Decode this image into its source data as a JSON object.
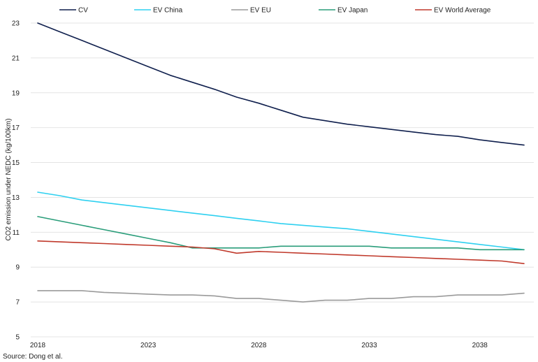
{
  "chart_data": {
    "type": "line",
    "title": "",
    "xlabel": "",
    "ylabel": "CO2 emission under NEDC (kg/100km)",
    "xlim": [
      2018,
      2040
    ],
    "ylim": [
      5,
      23
    ],
    "grid": true,
    "legend_position": "top",
    "x_ticks": [
      "2018",
      "2023",
      "2028",
      "2033",
      "2038"
    ],
    "y_ticks": [
      "5",
      "7",
      "9",
      "11",
      "13",
      "15",
      "17",
      "19",
      "21",
      "23"
    ],
    "x": [
      2018,
      2019,
      2020,
      2021,
      2022,
      2023,
      2024,
      2025,
      2026,
      2027,
      2028,
      2029,
      2030,
      2031,
      2032,
      2033,
      2034,
      2035,
      2036,
      2037,
      2038,
      2039,
      2040
    ],
    "series": [
      {
        "name": "CV",
        "color": "#0f1f4d",
        "values": [
          23.0,
          22.5,
          22.0,
          21.5,
          21.0,
          20.5,
          20.0,
          19.6,
          19.2,
          18.75,
          18.4,
          18.0,
          17.6,
          17.4,
          17.2,
          17.05,
          16.9,
          16.75,
          16.6,
          16.5,
          16.3,
          16.15,
          16.0
        ]
      },
      {
        "name": "EV China",
        "color": "#2ed0f0",
        "values": [
          13.3,
          13.1,
          12.85,
          12.7,
          12.55,
          12.4,
          12.25,
          12.1,
          11.95,
          11.8,
          11.65,
          11.5,
          11.4,
          11.3,
          11.2,
          11.05,
          10.9,
          10.75,
          10.6,
          10.45,
          10.3,
          10.15,
          10.0
        ]
      },
      {
        "name": "EV EU",
        "color": "#9a9a9a",
        "values": [
          7.65,
          7.65,
          7.65,
          7.55,
          7.5,
          7.45,
          7.4,
          7.4,
          7.35,
          7.2,
          7.2,
          7.1,
          7.0,
          7.1,
          7.1,
          7.2,
          7.2,
          7.3,
          7.3,
          7.4,
          7.4,
          7.4,
          7.5
        ]
      },
      {
        "name": "EV Japan",
        "color": "#2a9d7a",
        "values": [
          11.9,
          11.65,
          11.4,
          11.15,
          10.9,
          10.65,
          10.4,
          10.1,
          10.1,
          10.1,
          10.1,
          10.2,
          10.2,
          10.2,
          10.2,
          10.2,
          10.1,
          10.1,
          10.1,
          10.1,
          10.0,
          10.0,
          10.0
        ]
      },
      {
        "name": "EV World Average",
        "color": "#c0392b",
        "values": [
          10.5,
          10.45,
          10.4,
          10.35,
          10.3,
          10.25,
          10.2,
          10.15,
          10.05,
          9.8,
          9.9,
          9.85,
          9.8,
          9.75,
          9.7,
          9.65,
          9.6,
          9.55,
          9.5,
          9.45,
          9.4,
          9.35,
          9.2
        ]
      }
    ]
  },
  "source_note": "Source: Dong et al."
}
